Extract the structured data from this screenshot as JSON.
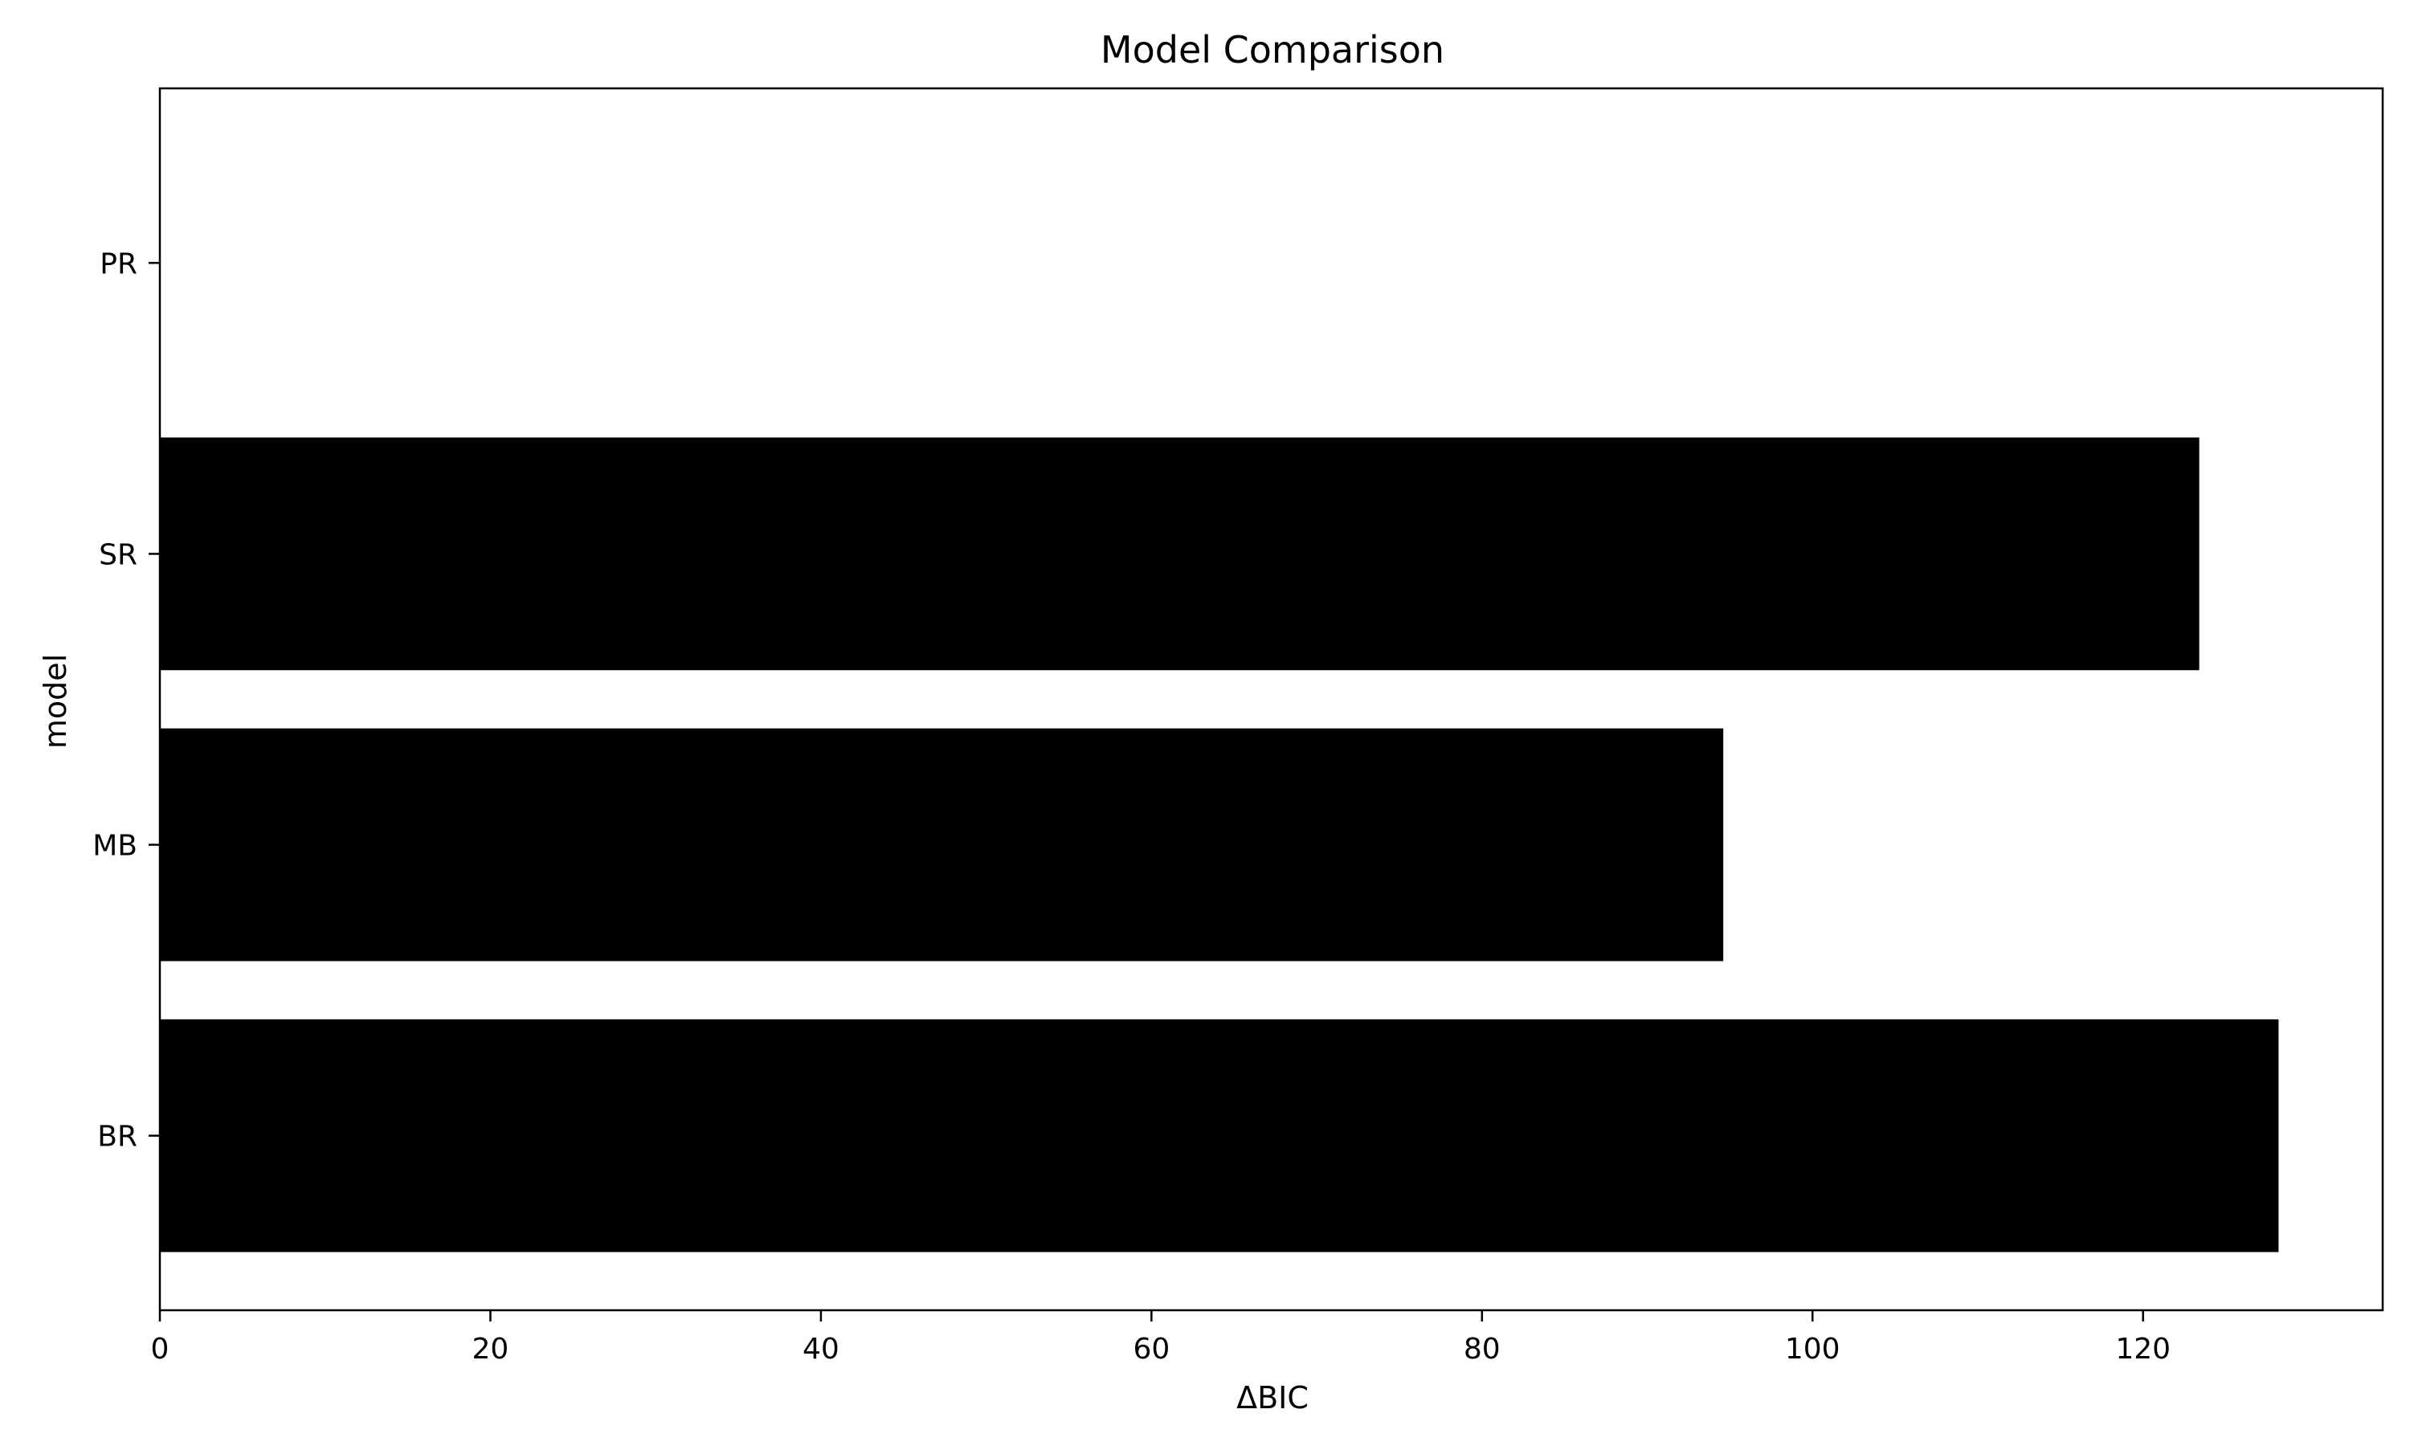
{
  "chart_data": {
    "type": "bar",
    "orientation": "horizontal",
    "title": "Model Comparison",
    "xlabel": "ΔBIC",
    "ylabel": "model",
    "categories": [
      "BR",
      "MB",
      "SR",
      "PR"
    ],
    "values": [
      128.2,
      94.6,
      123.4,
      0
    ],
    "xlim": [
      0,
      134.5
    ],
    "xticks": [
      0,
      20,
      40,
      60,
      80,
      100,
      120
    ],
    "grid": false,
    "legend": "none",
    "bar_color": "#000000"
  }
}
